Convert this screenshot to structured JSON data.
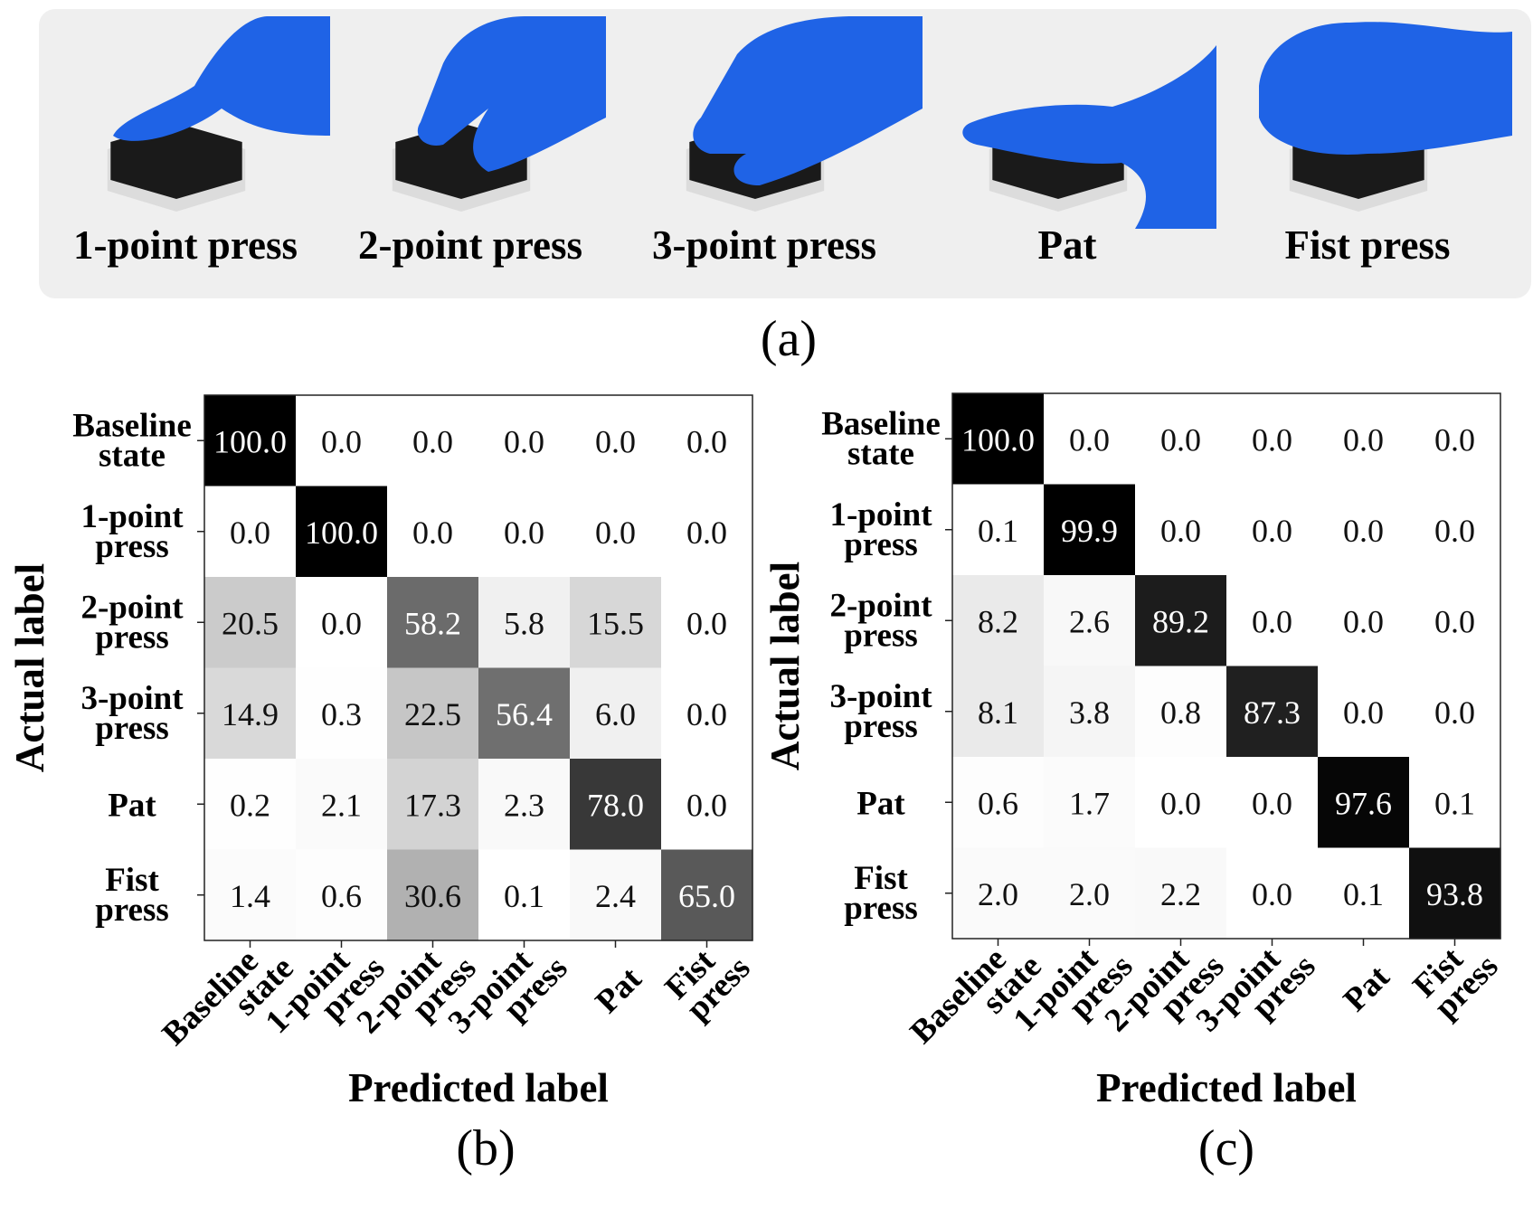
{
  "panel_a": {
    "gestures": [
      {
        "label": "1-point press",
        "pictogram": "index-finger-press-on-hexagon-sensor"
      },
      {
        "label": "2-point press",
        "pictogram": "two-finger-press-on-hexagon-sensor"
      },
      {
        "label": "3-point press",
        "pictogram": "three-finger-press-on-hexagon-sensor"
      },
      {
        "label": "Pat",
        "pictogram": "flat-hand-pat-on-hexagon-sensor"
      },
      {
        "label": "Fist press",
        "pictogram": "fist-press-on-hexagon-sensor"
      }
    ],
    "caption": "(a)",
    "glove_color": "#1f63e6",
    "background_color": "#efefef"
  },
  "chart_data": [
    {
      "type": "heatmap",
      "caption": "(b)",
      "xlabel": "Predicted label",
      "ylabel": "Actual label",
      "row_labels": [
        [
          "Baseline",
          "state"
        ],
        [
          "1-point",
          "press"
        ],
        [
          "2-point",
          "press"
        ],
        [
          "3-point",
          "press"
        ],
        [
          "Pat"
        ],
        [
          "Fist",
          "press"
        ]
      ],
      "col_labels": [
        [
          "Baseline",
          "state"
        ],
        [
          "1-point",
          "press"
        ],
        [
          "2-point",
          "press"
        ],
        [
          "3-point",
          "press"
        ],
        [
          "Pat"
        ],
        [
          "Fist",
          "press"
        ]
      ],
      "values": [
        [
          100.0,
          0.0,
          0.0,
          0.0,
          0.0,
          0.0
        ],
        [
          0.0,
          100.0,
          0.0,
          0.0,
          0.0,
          0.0
        ],
        [
          20.5,
          0.0,
          58.2,
          5.8,
          15.5,
          0.0
        ],
        [
          14.9,
          0.3,
          22.5,
          56.4,
          6.0,
          0.0
        ],
        [
          0.2,
          2.1,
          17.3,
          2.3,
          78.0,
          0.0
        ],
        [
          1.4,
          0.6,
          30.6,
          0.1,
          2.4,
          65.0
        ]
      ],
      "colormap": "white-to-black",
      "range": [
        0,
        100
      ]
    },
    {
      "type": "heatmap",
      "caption": "(c)",
      "xlabel": "Predicted label",
      "ylabel": "Actual label",
      "row_labels": [
        [
          "Baseline",
          "state"
        ],
        [
          "1-point",
          "press"
        ],
        [
          "2-point",
          "press"
        ],
        [
          "3-point",
          "press"
        ],
        [
          "Pat"
        ],
        [
          "Fist",
          "press"
        ]
      ],
      "col_labels": [
        [
          "Baseline",
          "state"
        ],
        [
          "1-point",
          "press"
        ],
        [
          "2-point",
          "press"
        ],
        [
          "3-point",
          "press"
        ],
        [
          "Pat"
        ],
        [
          "Fist",
          "press"
        ]
      ],
      "values": [
        [
          100.0,
          0.0,
          0.0,
          0.0,
          0.0,
          0.0
        ],
        [
          0.1,
          99.9,
          0.0,
          0.0,
          0.0,
          0.0
        ],
        [
          8.2,
          2.6,
          89.2,
          0.0,
          0.0,
          0.0
        ],
        [
          8.1,
          3.8,
          0.8,
          87.3,
          0.0,
          0.0
        ],
        [
          0.6,
          1.7,
          0.0,
          0.0,
          97.6,
          0.1
        ],
        [
          2.0,
          2.0,
          2.2,
          0.0,
          0.1,
          93.8
        ]
      ],
      "colormap": "white-to-black",
      "range": [
        0,
        100
      ]
    }
  ]
}
